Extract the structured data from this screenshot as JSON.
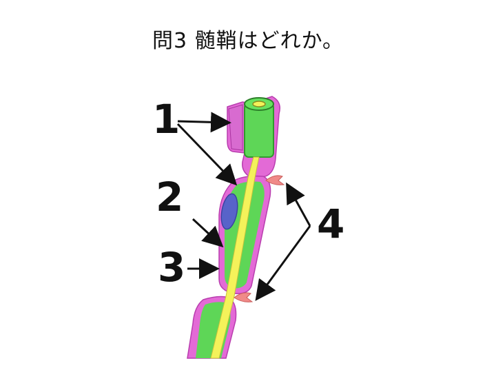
{
  "title": "問3 髄鞘はどれか。",
  "labels": [
    "1",
    "2",
    "3",
    "4"
  ],
  "colors": {
    "axon": "#f4f25a",
    "myelin_green": "#57d84f",
    "sheath_magenta": "#e75ad6",
    "nucleus": "#5561c9",
    "node_arrow": "#f08a88",
    "ink": "#111111"
  }
}
